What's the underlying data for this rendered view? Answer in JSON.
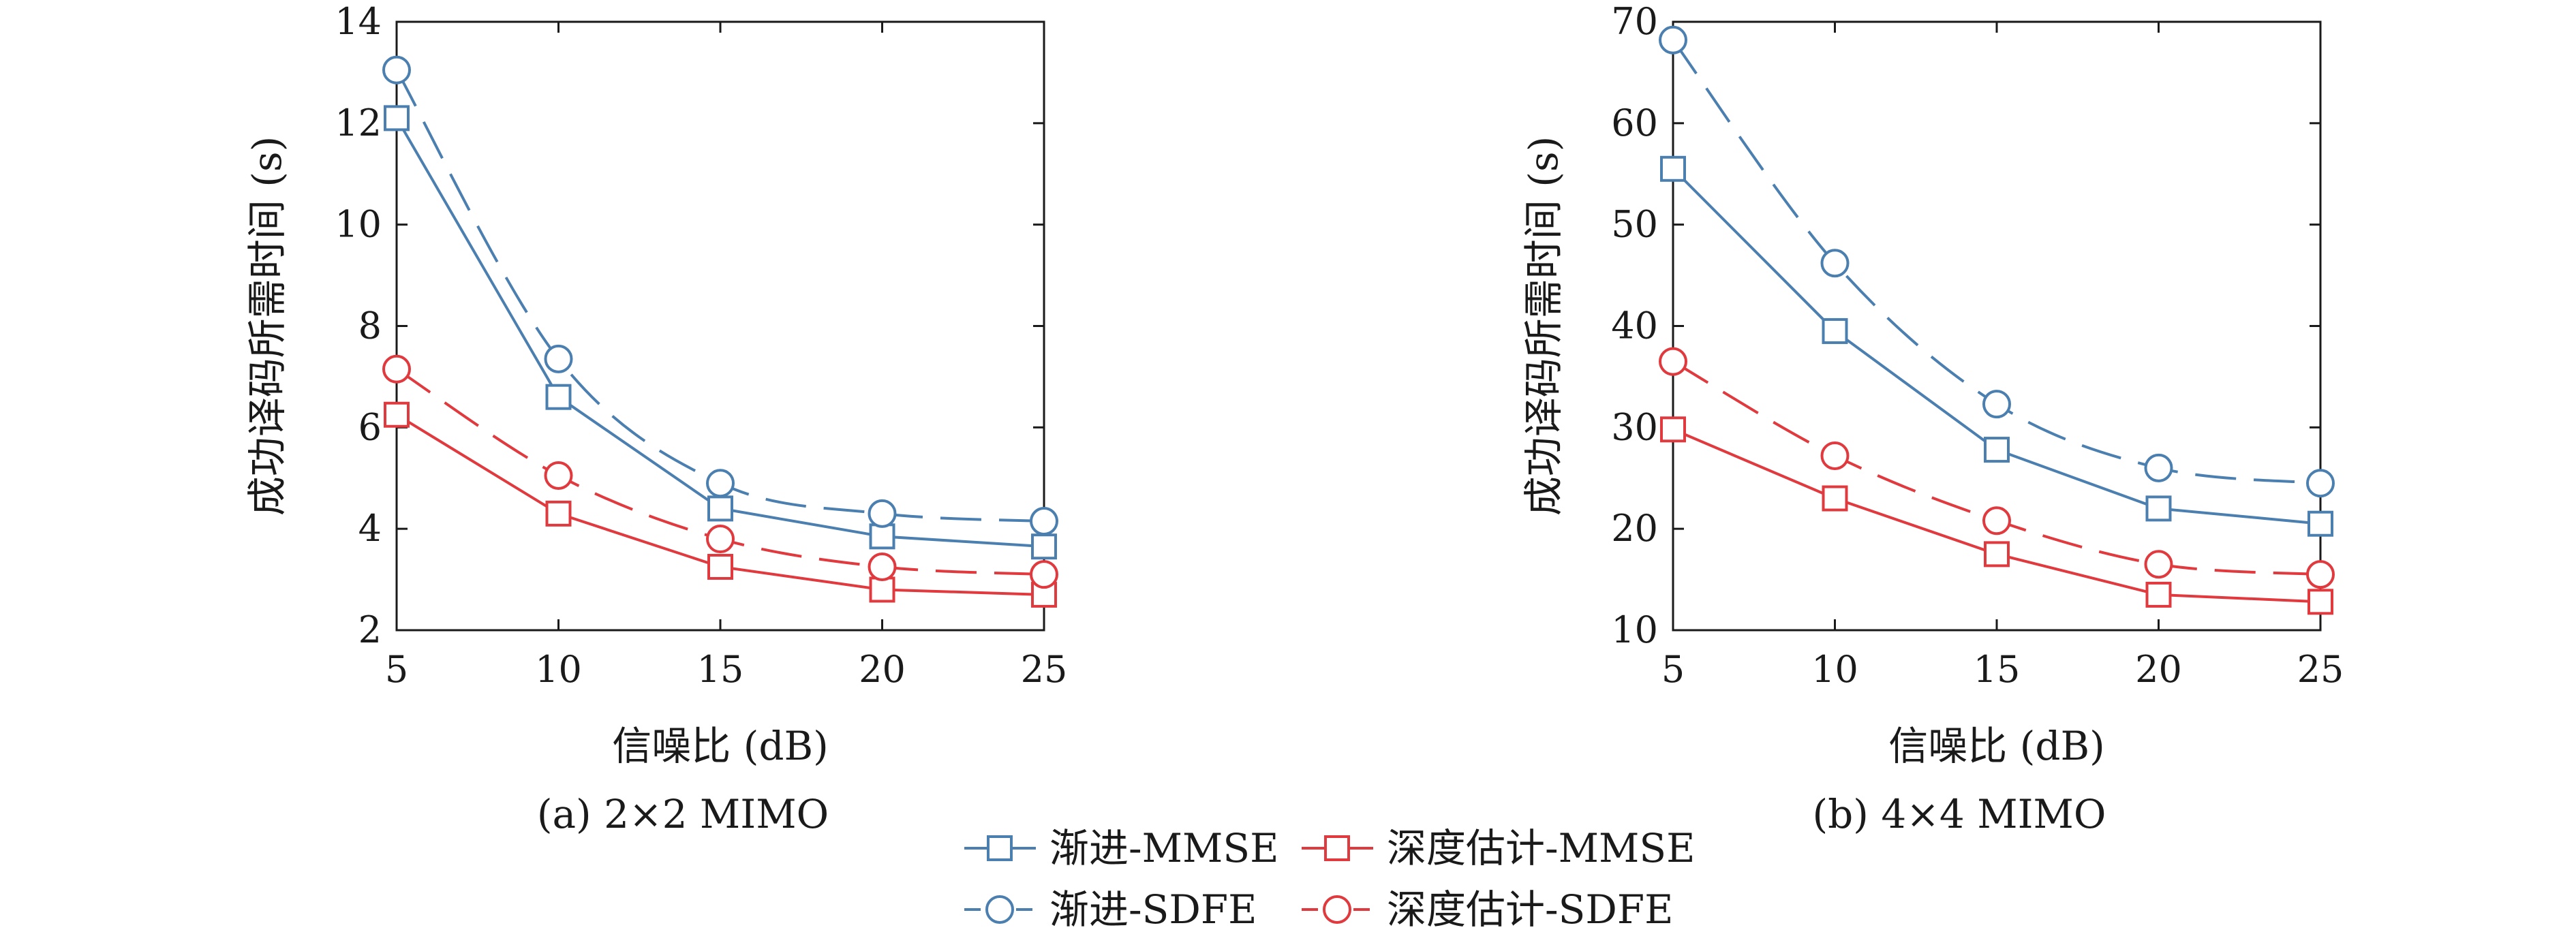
{
  "figure": {
    "legend": [
      {
        "series": 0,
        "label": "渐进-MMSE"
      },
      {
        "series": 2,
        "label": "深度估计-MMSE"
      },
      {
        "series": 1,
        "label": "渐进-SDFE"
      },
      {
        "series": 3,
        "label": "深度估计-SDFE"
      }
    ]
  },
  "chart_data": [
    {
      "type": "line",
      "caption": "(a) 2×2 MIMO",
      "xlabel": "信噪比 (dB)",
      "ylabel": "成功译码所需时间 (s)",
      "x": [
        5,
        10,
        15,
        20,
        25
      ],
      "xlim": [
        5,
        25
      ],
      "ylim": [
        2,
        14
      ],
      "xticks": [
        "5",
        "10",
        "15",
        "20",
        "25"
      ],
      "yticks": [
        "2",
        "4",
        "6",
        "8",
        "10",
        "12",
        "14"
      ],
      "grid": false,
      "legend_position": "bottom-center",
      "series": [
        {
          "name": "渐进-MMSE",
          "values": [
            12.1,
            6.6,
            4.4,
            3.85,
            3.65
          ],
          "color": "#4a7fb0",
          "marker": "square",
          "line": "solid"
        },
        {
          "name": "渐进-SDFE",
          "values": [
            13.05,
            7.35,
            4.9,
            4.3,
            4.15
          ],
          "color": "#4a7fb0",
          "marker": "circle",
          "line": "dashed"
        },
        {
          "name": "深度估计-MMSE",
          "values": [
            6.25,
            4.3,
            3.25,
            2.8,
            2.7
          ],
          "color": "#e0393e",
          "marker": "square",
          "line": "solid"
        },
        {
          "name": "深度估计-SDFE",
          "values": [
            7.15,
            5.05,
            3.8,
            3.25,
            3.1
          ],
          "color": "#e0393e",
          "marker": "circle",
          "line": "dashed"
        }
      ]
    },
    {
      "type": "line",
      "caption": "(b) 4×4 MIMO",
      "xlabel": "信噪比 (dB)",
      "ylabel": "成功译码所需时间 (s)",
      "x": [
        5,
        10,
        15,
        20,
        25
      ],
      "xlim": [
        5,
        25
      ],
      "ylim": [
        10,
        70
      ],
      "xticks": [
        "5",
        "10",
        "15",
        "20",
        "25"
      ],
      "yticks": [
        "10",
        "20",
        "30",
        "40",
        "50",
        "60",
        "70"
      ],
      "grid": false,
      "legend_position": "bottom-center",
      "series": [
        {
          "name": "渐进-MMSE",
          "values": [
            55.5,
            39.5,
            27.8,
            22.0,
            20.5
          ],
          "color": "#4a7fb0",
          "marker": "square",
          "line": "solid"
        },
        {
          "name": "渐进-SDFE",
          "values": [
            68.2,
            46.2,
            32.3,
            26.0,
            24.5
          ],
          "color": "#4a7fb0",
          "marker": "circle",
          "line": "dashed"
        },
        {
          "name": "深度估计-MMSE",
          "values": [
            29.8,
            23.0,
            17.5,
            13.5,
            12.8
          ],
          "color": "#e0393e",
          "marker": "square",
          "line": "solid"
        },
        {
          "name": "深度估计-SDFE",
          "values": [
            36.5,
            27.2,
            20.8,
            16.5,
            15.5
          ],
          "color": "#e0393e",
          "marker": "circle",
          "line": "dashed"
        }
      ]
    }
  ]
}
